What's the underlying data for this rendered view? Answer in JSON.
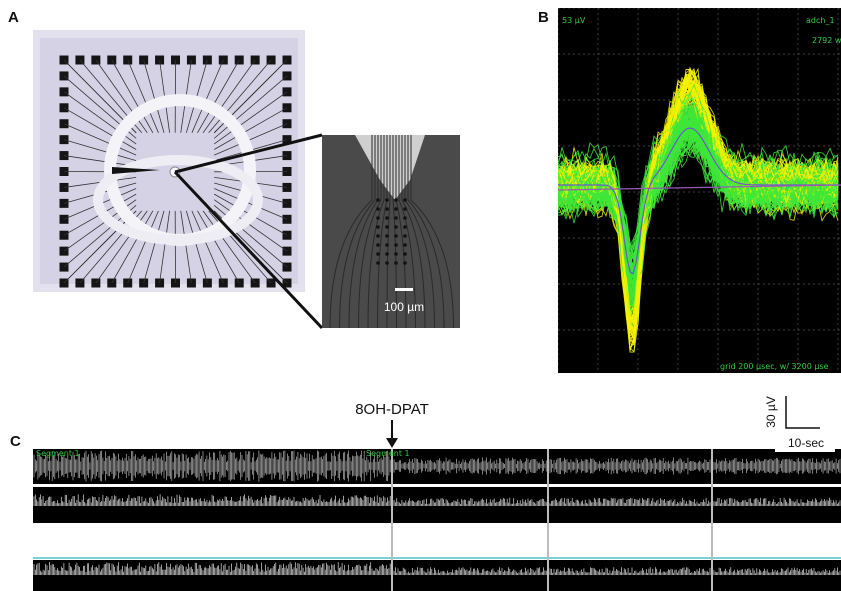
{
  "panels": {
    "a": {
      "label": "A",
      "scale_bar": "100 µm"
    },
    "b": {
      "label": "B",
      "amplitude": "53 µV",
      "channel": "adch_1",
      "count": "2792 w",
      "grid": "grid 200 µsec, w/ 3200 µse"
    },
    "c": {
      "label": "C",
      "drug": "8OH-DPAT",
      "scale_y": "30 µV",
      "scale_x": "10-sec",
      "segments": [
        "Segment 1",
        "Segment 1"
      ]
    }
  }
}
